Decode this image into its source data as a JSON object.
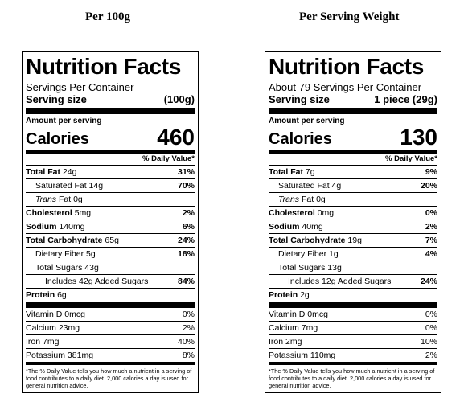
{
  "columns": [
    {
      "heading": "Per 100g",
      "title": "Nutrition Facts",
      "servings": "Servings Per Container",
      "serving_size_label": "Serving size",
      "serving_size_value": "(100g)",
      "amount_label": "Amount per serving",
      "calories_label": "Calories",
      "calories_value": "460",
      "dv_header": "% Daily Value*",
      "total_fat_label": "Total Fat",
      "total_fat_amt": "24g",
      "total_fat_pct": "31%",
      "sat_fat": "Saturated Fat 14g",
      "sat_fat_pct": "70%",
      "trans_label": "Trans",
      "trans_rest": " Fat 0g",
      "chol_label": "Cholesterol",
      "chol_amt": "5mg",
      "chol_pct": "2%",
      "sodium_label": "Sodium",
      "sodium_amt": "140mg",
      "sodium_pct": "6%",
      "carb_label": "Total Carbohydrate",
      "carb_amt": "65g",
      "carb_pct": "24%",
      "fiber": "Dietary Fiber 5g",
      "fiber_pct": "18%",
      "sugars": "Total Sugars 43g",
      "added_sugars": "Includes 42g Added Sugars",
      "added_sugars_pct": "84%",
      "protein_label": "Protein",
      "protein_amt": "6g",
      "vit_d": "Vitamin D 0mcg",
      "vit_d_pct": "0%",
      "calcium": "Calcium 23mg",
      "calcium_pct": "2%",
      "iron": "Iron 7mg",
      "iron_pct": "40%",
      "potassium": "Potassium 381mg",
      "potassium_pct": "8%",
      "footnote": "*The % Daily Value tells you how much a nutrient in a serving of food contributes to a daily diet. 2,000 calories a day is used for general nutrition advice."
    },
    {
      "heading": "Per Serving Weight",
      "title": "Nutrition Facts",
      "servings": "About 79 Servings Per Container",
      "serving_size_label": "Serving size",
      "serving_size_value": "1 piece (29g)",
      "amount_label": "Amount per serving",
      "calories_label": "Calories",
      "calories_value": "130",
      "dv_header": "% Daily Value*",
      "total_fat_label": "Total Fat",
      "total_fat_amt": "7g",
      "total_fat_pct": "9%",
      "sat_fat": "Saturated Fat 4g",
      "sat_fat_pct": "20%",
      "trans_label": "Trans",
      "trans_rest": " Fat 0g",
      "chol_label": "Cholesterol",
      "chol_amt": "0mg",
      "chol_pct": "0%",
      "sodium_label": "Sodium",
      "sodium_amt": "40mg",
      "sodium_pct": "2%",
      "carb_label": "Total Carbohydrate",
      "carb_amt": "19g",
      "carb_pct": "7%",
      "fiber": "Dietary Fiber 1g",
      "fiber_pct": "4%",
      "sugars": "Total Sugars 13g",
      "added_sugars": "Includes 12g Added Sugars",
      "added_sugars_pct": "24%",
      "protein_label": "Protein",
      "protein_amt": "2g",
      "vit_d": "Vitamin D 0mcg",
      "vit_d_pct": "0%",
      "calcium": "Calcium 7mg",
      "calcium_pct": "0%",
      "iron": "Iron 2mg",
      "iron_pct": "10%",
      "potassium": "Potassium 110mg",
      "potassium_pct": "2%",
      "footnote": "*The % Daily Value tells you how much a nutrient in a serving of food contributes to a daily diet. 2,000 calories a day is used for general nutrition advice."
    }
  ]
}
